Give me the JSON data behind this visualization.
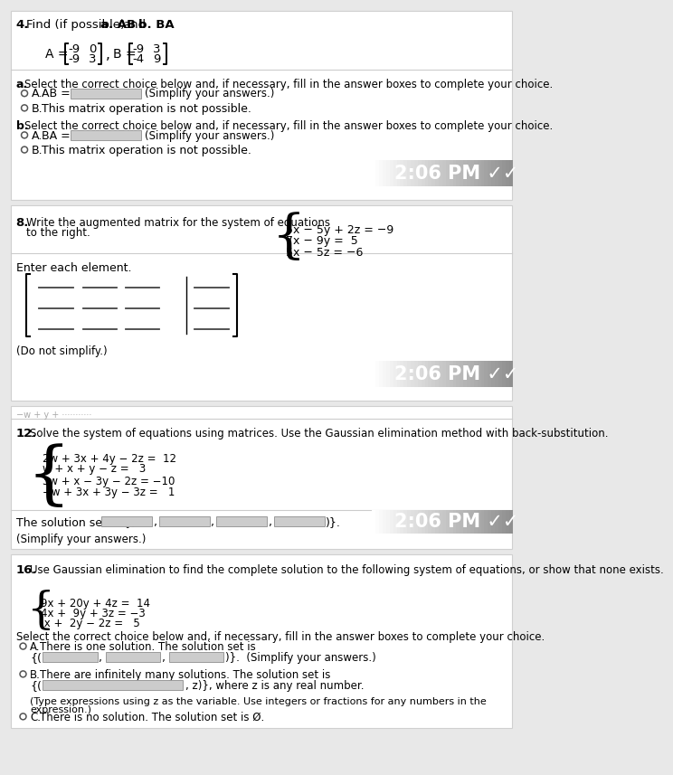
{
  "bg_color": "#e8e8e8",
  "section_bg": "#ffffff",
  "prob4": {
    "number": "4.",
    "title": "Find (if possible) a. AB and b. BA",
    "A_matrix": [
      [
        -9,
        0
      ],
      [
        -9,
        3
      ]
    ],
    "B_matrix": [
      [
        -9,
        3
      ],
      [
        -4,
        9
      ]
    ],
    "part_a": "a. Select the correct choice below and, if necessary, fill in the answer boxes to complete your choice.",
    "part_b": "b. Select the correct choice below and, if necessary, fill in the answer boxes to complete your choice.",
    "timestamp": "2:06 PM ✓✓"
  },
  "prob8": {
    "number": "8.",
    "title_line1": "Write the augmented matrix for the system of equations",
    "title_line2": "to the right.",
    "eq1": "5x − 5y + 2z = −9",
    "eq2": "7x − 9y =  5",
    "eq3": "5x − 5z = −6",
    "timestamp": "2:06 PM ✓✓"
  },
  "prob12": {
    "number": "12.",
    "title": "Solve the system of equations using matrices. Use the Gaussian elimination method with back-substitution.",
    "eq1": "2w + 3x + 4y − 2z =  12",
    "eq2": "w + x + y − z =   3",
    "eq3": "3w + x − 3y − 2z = −10",
    "eq4": "−w + 3x + 3y − 3z =   1",
    "timestamp": "2:06 PM ✓✓"
  },
  "prob16": {
    "number": "16.",
    "title": "Use Gaussian elimination to find the complete solution to the following system of equations, or show that none exists.",
    "eq1": "9x + 20y + 4z =  14",
    "eq2": "4x +  9y + 3z = −3",
    "eq3": " x +  2y − 2z =   5"
  }
}
